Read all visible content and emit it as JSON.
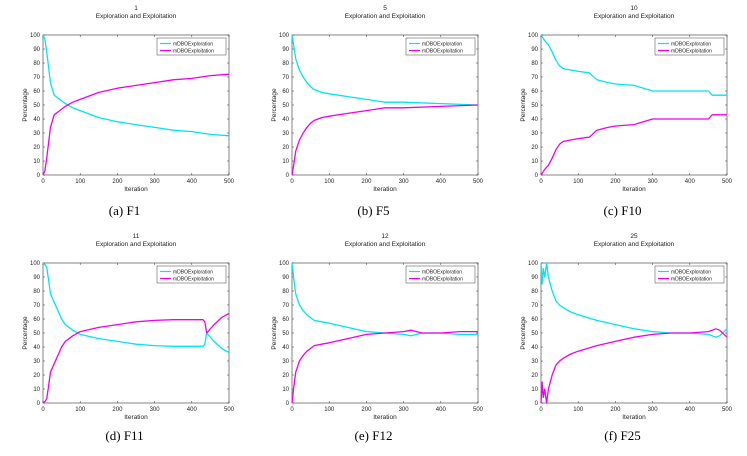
{
  "figure": {
    "legend_exploration": "mDBOExploration",
    "legend_exploitation": "mDBOExploitation",
    "exploration_color": "#00e5ee",
    "exploitation_color": "#ee00ee",
    "subtitle": "Exploration and Exploitation",
    "xlabel": "Iteration",
    "ylabel": "Percentage",
    "xlim": [
      0,
      500
    ],
    "ylim": [
      0,
      100
    ],
    "x_ticks": [
      0,
      100,
      200,
      300,
      400,
      500
    ],
    "y_ticks": [
      0,
      10,
      20,
      30,
      40,
      50,
      60,
      70,
      80,
      90,
      100
    ]
  },
  "chart_data": [
    {
      "type": "line",
      "title": "1",
      "caption": "(a)  F1",
      "x": [
        0,
        5,
        10,
        15,
        20,
        30,
        40,
        60,
        80,
        100,
        150,
        200,
        250,
        300,
        350,
        400,
        450,
        500
      ],
      "series": [
        {
          "name": "mDBOExploration",
          "values": [
            100,
            97,
            88,
            77,
            66,
            57,
            55,
            51,
            48,
            46,
            41,
            38,
            36,
            34,
            32,
            31,
            29,
            28
          ]
        },
        {
          "name": "mDBOExploitation",
          "values": [
            0,
            3,
            12,
            23,
            34,
            43,
            45,
            49,
            52,
            54,
            59,
            62,
            64,
            66,
            68,
            69,
            71,
            72
          ]
        }
      ]
    },
    {
      "type": "line",
      "title": "5",
      "caption": "(b)  F5",
      "x": [
        0,
        5,
        10,
        20,
        30,
        40,
        50,
        60,
        80,
        100,
        150,
        200,
        250,
        300,
        400,
        500
      ],
      "series": [
        {
          "name": "mDBOExploration",
          "values": [
            100,
            92,
            83,
            75,
            70,
            66,
            63,
            61,
            59,
            58,
            56,
            54,
            52,
            52,
            51,
            50
          ]
        },
        {
          "name": "mDBOExploitation",
          "values": [
            0,
            8,
            17,
            25,
            30,
            34,
            37,
            39,
            41,
            42,
            44,
            46,
            48,
            48,
            49,
            50
          ]
        }
      ]
    },
    {
      "type": "line",
      "title": "10",
      "caption": "(c)  F10",
      "x": [
        0,
        5,
        10,
        20,
        30,
        40,
        50,
        60,
        80,
        100,
        130,
        150,
        180,
        200,
        250,
        300,
        350,
        400,
        450,
        460,
        500
      ],
      "series": [
        {
          "name": "mDBOExploration",
          "values": [
            100,
            98,
            96,
            93,
            88,
            82,
            78,
            76,
            75,
            74,
            73,
            68,
            66,
            65,
            64,
            60,
            60,
            60,
            60,
            57,
            57
          ]
        },
        {
          "name": "mDBOExploitation",
          "values": [
            0,
            2,
            4,
            7,
            12,
            18,
            22,
            24,
            25,
            26,
            27,
            32,
            34,
            35,
            36,
            40,
            40,
            40,
            40,
            43,
            43
          ]
        }
      ]
    },
    {
      "type": "line",
      "title": "11",
      "caption": "(d)  F11",
      "x": [
        0,
        5,
        10,
        15,
        20,
        30,
        40,
        50,
        60,
        80,
        100,
        150,
        200,
        250,
        300,
        350,
        400,
        430,
        435,
        440,
        460,
        480,
        500
      ],
      "series": [
        {
          "name": "mDBOExploration",
          "values": [
            100,
            99,
            97,
            88,
            78,
            72,
            66,
            60,
            56,
            52,
            49,
            46,
            44,
            42,
            41,
            40.5,
            40.5,
            40.5,
            42,
            50,
            44,
            39,
            36
          ]
        },
        {
          "name": "mDBOExploitation",
          "values": [
            0,
            1,
            3,
            12,
            22,
            28,
            34,
            40,
            44,
            48,
            51,
            54,
            56,
            58,
            59,
            59.5,
            59.5,
            59.5,
            58,
            50,
            56,
            61,
            64
          ]
        }
      ]
    },
    {
      "type": "line",
      "title": "12",
      "caption": "(e)  F12",
      "x": [
        0,
        5,
        10,
        20,
        30,
        40,
        50,
        60,
        80,
        100,
        150,
        200,
        250,
        300,
        320,
        350,
        400,
        450,
        500
      ],
      "series": [
        {
          "name": "mDBOExploration",
          "values": [
            100,
            88,
            78,
            70,
            66,
            63,
            61,
            59,
            58,
            57,
            54,
            51,
            50,
            49,
            48,
            50,
            50,
            49,
            49
          ]
        },
        {
          "name": "mDBOExploitation",
          "values": [
            0,
            12,
            22,
            30,
            34,
            37,
            39,
            41,
            42,
            43,
            46,
            49,
            50,
            51,
            52,
            50,
            50,
            51,
            51
          ]
        }
      ]
    },
    {
      "type": "line",
      "title": "25",
      "caption": "(f)  F25",
      "x": [
        0,
        3,
        6,
        10,
        15,
        20,
        30,
        40,
        50,
        60,
        80,
        100,
        150,
        200,
        250,
        300,
        350,
        400,
        450,
        470,
        480,
        500
      ],
      "series": [
        {
          "name": "mDBOExploration",
          "values": [
            100,
            85,
            96,
            90,
            100,
            90,
            80,
            73,
            70,
            68,
            65,
            63,
            59,
            56,
            53,
            51,
            50,
            50,
            49,
            47,
            48,
            53
          ]
        },
        {
          "name": "mDBOExploitation",
          "values": [
            0,
            15,
            4,
            10,
            0,
            10,
            20,
            27,
            30,
            32,
            35,
            37,
            41,
            44,
            47,
            49,
            50,
            50,
            51,
            53,
            52,
            47
          ]
        }
      ]
    }
  ]
}
